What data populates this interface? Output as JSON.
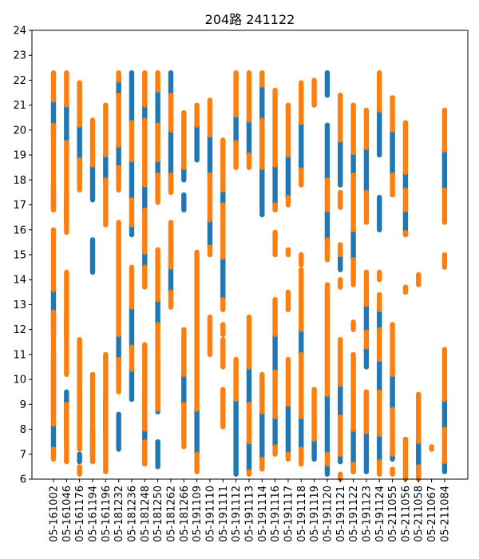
{
  "chart_data": {
    "type": "scatter",
    "title": "204路  241122",
    "xlabel": "",
    "ylabel": "",
    "ylim": [
      6,
      24
    ],
    "yticks": [
      6,
      7,
      8,
      9,
      10,
      11,
      12,
      13,
      14,
      15,
      16,
      17,
      18,
      19,
      20,
      21,
      22,
      23,
      24
    ],
    "categories": [
      "05-161002",
      "05-161046",
      "05-161176",
      "05-161194",
      "05-161196",
      "05-181232",
      "05-181236",
      "05-181248",
      "05-181250",
      "05-181262",
      "05-181266",
      "05-191109",
      "05-191110",
      "05-191111",
      "05-191112",
      "05-191113",
      "05-191114",
      "05-191116",
      "05-191117",
      "05-191118",
      "05-191119",
      "05-191120",
      "05-191121",
      "05-191122",
      "05-191123",
      "05-191124",
      "05-211055",
      "05-211056",
      "05-211058",
      "05-211067",
      "05-211084"
    ],
    "grid": false,
    "legend": "none",
    "colors": {
      "blue": "#1f77b4",
      "orange": "#ff7f0e"
    },
    "series": [
      {
        "color": "blue",
        "segments": [
          [
            [
              7.0,
              8.2
            ],
            [
              8.5,
              11.0
            ],
            [
              11.8,
              13.6
            ],
            [
              16.8,
              17.8
            ],
            [
              19.8,
              21.2
            ]
          ],
          [
            [
              7.5,
              9.5
            ],
            [
              11.8,
              12.4
            ],
            [
              16.3,
              17.3
            ],
            [
              19.6,
              21.0
            ]
          ],
          [
            [
              6.7,
              7.0
            ],
            [
              8.5,
              9.5
            ],
            [
              18.0,
              20.2
            ]
          ],
          [
            [
              6.9,
              8.0
            ],
            [
              14.3,
              15.6
            ],
            [
              17.2,
              18.6
            ]
          ],
          [
            [
              7.8,
              9.2
            ],
            [
              18.0,
              19.0
            ]
          ],
          [
            [
              7.2,
              8.6
            ],
            [
              9.8,
              11.8
            ],
            [
              12.6,
              14.5
            ],
            [
              18.2,
              19.4
            ],
            [
              21.4,
              22.2
            ]
          ],
          [
            [
              9.2,
              10.4
            ],
            [
              11.3,
              12.9
            ],
            [
              15.8,
              16.2
            ],
            [
              17.2,
              18.8
            ],
            [
              20.3,
              22.3
            ]
          ],
          [
            [
              6.7,
              9.5
            ],
            [
              14.5,
              15.1
            ],
            [
              16.8,
              17.8
            ],
            [
              20.4,
              21.0
            ]
          ],
          [
            [
              6.5,
              7.5
            ],
            [
              8.7,
              10.7
            ],
            [
              12.2,
              13.2
            ],
            [
              18.2,
              18.8
            ],
            [
              19.6,
              21.6
            ]
          ],
          [
            [
              13.5,
              14.5
            ],
            [
              18.2,
              20.0
            ],
            [
              21.4,
              22.3
            ]
          ],
          [
            [
              9.0,
              10.2
            ],
            [
              16.8,
              17.4
            ],
            [
              18.0,
              18.5
            ]
          ],
          [
            [
              7.0,
              8.8
            ],
            [
              18.8,
              20.2
            ]
          ],
          [
            [
              15.3,
              16.4
            ],
            [
              18.2,
              19.8
            ]
          ],
          [
            [
              13.2,
              14.9
            ],
            [
              17.0,
              17.6
            ]
          ],
          [
            [
              6.2,
              9.2
            ],
            [
              19.5,
              20.6
            ]
          ],
          [
            [
              6.3,
              7.5
            ],
            [
              9.0,
              10.5
            ],
            [
              19.0,
              20.4
            ]
          ],
          [
            [
              6.8,
              8.7
            ],
            [
              16.6,
              18.5
            ],
            [
              20.4,
              21.8
            ]
          ],
          [
            [
              7.3,
              8.5
            ],
            [
              10.3,
              11.8
            ],
            [
              16.8,
              18.6
            ]
          ],
          [
            [
              7.0,
              9.0
            ],
            [
              17.3,
              19.0
            ]
          ],
          [
            [
              7.2,
              8.5
            ],
            [
              11.0,
              12.0
            ],
            [
              18.4,
              20.3
            ]
          ],
          [
            [
              6.8,
              7.6
            ]
          ],
          [
            [
              6.2,
              6.6
            ],
            [
              7.0,
              9.4
            ],
            [
              15.6,
              16.8
            ],
            [
              18.0,
              20.2
            ],
            [
              21.4,
              22.3
            ]
          ],
          [
            [
              6.7,
              6.9
            ],
            [
              8.5,
              9.8
            ],
            [
              14.4,
              15.0
            ],
            [
              17.8,
              19.6
            ]
          ],
          [
            [
              6.3,
              8.0
            ],
            [
              14.8,
              16.0
            ],
            [
              18.2,
              19.1
            ]
          ],
          [
            [
              6.3,
              9.5
            ],
            [
              10.5,
              11.3
            ],
            [
              11.9,
              13.0
            ],
            [
              17.5,
              19.3
            ]
          ],
          [
            [
              6.7,
              7.8
            ],
            [
              9.5,
              10.8
            ],
            [
              12.0,
              12.8
            ],
            [
              16.0,
              17.3
            ],
            [
              19.0,
              20.8
            ]
          ],
          [
            [
              6.8,
              7.0
            ],
            [
              8.8,
              10.2
            ],
            [
              18.2,
              20.0
            ]
          ],
          [
            [
              15.8,
              16.8
            ],
            [
              17.6,
              18.3
            ]
          ],
          [
            [
              6.5,
              7.5
            ]
          ],
          [],
          [
            [
              6.3,
              6.7
            ],
            [
              8.0,
              9.2
            ],
            [
              17.6,
              19.2
            ]
          ]
        ]
      },
      {
        "color": "orange",
        "segments": [
          [
            [
              6.8,
              7.2
            ],
            [
              8.2,
              12.7
            ],
            [
              13.6,
              16.0
            ],
            [
              16.8,
              20.2
            ],
            [
              21.2,
              22.3
            ]
          ],
          [
            [
              6.7,
              9.0
            ],
            [
              10.2,
              14.3
            ],
            [
              15.9,
              19.5
            ],
            [
              21.0,
              22.3
            ]
          ],
          [
            [
              6.2,
              6.5
            ],
            [
              7.2,
              11.6
            ],
            [
              17.6,
              18.8
            ],
            [
              20.2,
              21.9
            ]
          ],
          [
            [
              6.7,
              10.2
            ],
            [
              18.6,
              20.4
            ]
          ],
          [
            [
              6.3,
              11.0
            ],
            [
              16.2,
              18.0
            ],
            [
              19.0,
              21.0
            ]
          ],
          [
            [
              9.5,
              10.8
            ],
            [
              11.8,
              16.3
            ],
            [
              17.6,
              18.5
            ],
            [
              19.4,
              21.4
            ],
            [
              22.0,
              22.3
            ]
          ],
          [
            [
              10.4,
              11.3
            ],
            [
              12.9,
              14.5
            ],
            [
              16.2,
              17.2
            ],
            [
              18.8,
              20.3
            ]
          ],
          [
            [
              6.6,
              7.5
            ],
            [
              8.0,
              11.4
            ],
            [
              13.7,
              14.5
            ],
            [
              15.1,
              16.8
            ],
            [
              17.8,
              20.4
            ],
            [
              21.0,
              22.3
            ]
          ],
          [
            [
              8.8,
              12.2
            ],
            [
              13.2,
              15.2
            ],
            [
              17.1,
              18.2
            ],
            [
              18.8,
              20.2
            ],
            [
              21.6,
              22.3
            ]
          ],
          [
            [
              12.9,
              13.5
            ],
            [
              14.5,
              16.3
            ],
            [
              17.5,
              18.2
            ],
            [
              20.0,
              21.4
            ]
          ],
          [
            [
              7.3,
              9.0
            ],
            [
              10.2,
              12.0
            ],
            [
              18.5,
              20.7
            ]
          ],
          [
            [
              6.3,
              7.0
            ],
            [
              8.8,
              15.1
            ],
            [
              20.2,
              21.0
            ]
          ],
          [
            [
              11.0,
              12.5
            ],
            [
              15.0,
              15.3
            ],
            [
              16.4,
              18.2
            ],
            [
              19.8,
              21.2
            ]
          ],
          [
            [
              8.1,
              9.6
            ],
            [
              10.5,
              11.6
            ],
            [
              11.8,
              12.2
            ],
            [
              12.8,
              13.2
            ],
            [
              14.9,
              17.0
            ],
            [
              17.6,
              19.6
            ]
          ],
          [
            [
              9.2,
              10.8
            ],
            [
              18.5,
              19.5
            ],
            [
              20.6,
              22.3
            ]
          ],
          [
            [
              6.2,
              6.3
            ],
            [
              7.5,
              9.0
            ],
            [
              10.5,
              12.5
            ],
            [
              18.5,
              19.0
            ],
            [
              20.4,
              22.3
            ]
          ],
          [
            [
              6.4,
              6.8
            ],
            [
              8.7,
              10.2
            ],
            [
              18.5,
              20.4
            ],
            [
              21.8,
              22.3
            ]
          ],
          [
            [
              7.0,
              7.3
            ],
            [
              8.5,
              10.3
            ],
            [
              11.8,
              13.2
            ],
            [
              15.0,
              15.4
            ],
            [
              15.5,
              15.9
            ],
            [
              16.8,
              17.0
            ],
            [
              18.6,
              21.6
            ]
          ],
          [
            [
              6.8,
              7.0
            ],
            [
              9.0,
              10.8
            ],
            [
              12.8,
              13.5
            ],
            [
              15.0,
              15.2
            ],
            [
              17.0,
              17.3
            ],
            [
              19.0,
              21.0
            ]
          ],
          [
            [
              6.6,
              7.2
            ],
            [
              8.5,
              11.0
            ],
            [
              12.0,
              14.4
            ],
            [
              14.6,
              15.0
            ],
            [
              17.8,
              18.4
            ],
            [
              20.3,
              21.9
            ]
          ],
          [
            [
              7.6,
              9.6
            ],
            [
              21.0,
              22.0
            ]
          ],
          [
            [
              6.6,
              7.0
            ],
            [
              9.4,
              13.8
            ],
            [
              14.8,
              15.6
            ],
            [
              16.8,
              18.0
            ]
          ],
          [
            [
              6.0,
              6.2
            ],
            [
              7.0,
              8.5
            ],
            [
              9.8,
              11.6
            ],
            [
              13.7,
              14.0
            ],
            [
              15.0,
              15.4
            ],
            [
              16.9,
              17.5
            ],
            [
              19.6,
              21.4
            ]
          ],
          [
            [
              6.3,
              6.6
            ],
            [
              8.0,
              11.0
            ],
            [
              12.0,
              12.3
            ],
            [
              13.8,
              14.8
            ],
            [
              16.0,
              18.2
            ],
            [
              19.1,
              21.0
            ]
          ],
          [
            [
              7.9,
              9.5
            ],
            [
              11.3,
              11.9
            ],
            [
              13.0,
              14.3
            ],
            [
              16.3,
              17.5
            ],
            [
              19.3,
              20.8
            ]
          ],
          [
            [
              6.2,
              6.7
            ],
            [
              7.8,
              9.5
            ],
            [
              10.8,
              12.0
            ],
            [
              12.8,
              13.4
            ],
            [
              14.0,
              14.3
            ],
            [
              20.8,
              22.3
            ]
          ],
          [
            [
              6.2,
              6.4
            ],
            [
              7.0,
              8.8
            ],
            [
              10.2,
              12.2
            ],
            [
              17.4,
              18.2
            ],
            [
              20.0,
              21.3
            ]
          ],
          [
            [
              6.0,
              7.6
            ],
            [
              13.5,
              13.7
            ],
            [
              15.8,
              15.9
            ],
            [
              16.8,
              17.6
            ],
            [
              18.3,
              20.3
            ]
          ],
          [
            [
              6.0,
              6.5
            ],
            [
              7.5,
              9.4
            ],
            [
              13.8,
              14.2
            ]
          ],
          [
            [
              7.2,
              7.3
            ]
          ],
          [
            [
              6.7,
              8.0
            ],
            [
              9.2,
              11.2
            ],
            [
              14.5,
              15.0
            ],
            [
              16.3,
              17.6
            ],
            [
              19.2,
              20.8
            ]
          ]
        ]
      }
    ]
  }
}
